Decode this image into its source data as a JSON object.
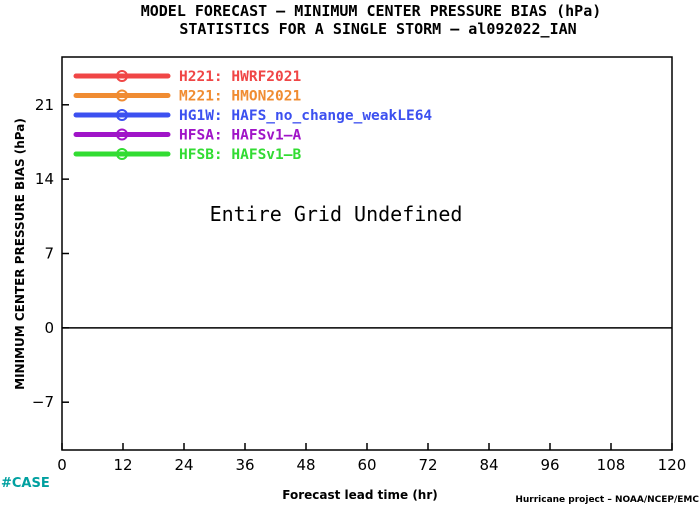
{
  "chart_data": {
    "type": "line",
    "title": "MODEL FORECAST – MINIMUM CENTER PRESSURE BIAS (hPa)",
    "subtitle": "STATISTICS FOR A SINGLE STORM – al092022_IAN",
    "xlabel": "Forecast lead time (hr)",
    "ylabel": "MINIMUM CENTER PRESSURE BIAS (hPa)",
    "xlim": [
      0,
      120
    ],
    "ylim": [
      -11.5,
      25.5
    ],
    "x_ticks": [
      "0",
      "12",
      "24",
      "36",
      "48",
      "60",
      "72",
      "84",
      "96",
      "108",
      "120"
    ],
    "y_ticks": [
      "−7",
      "0",
      "7",
      "14",
      "21"
    ],
    "zero_line": true,
    "grid": false,
    "legend_position": "top-left",
    "series": [
      {
        "name": "H221: HWRF2021",
        "color": "#f04646",
        "values": []
      },
      {
        "name": "M221: HMON2021",
        "color": "#f08c32",
        "values": []
      },
      {
        "name": "HG1W: HAFS_no_change_weakLE64",
        "color": "#3c50f0",
        "values": []
      },
      {
        "name": "HFSA: HAFSv1–A",
        "color": "#a014c8",
        "values": []
      },
      {
        "name": "HFSB: HAFSv1–B",
        "color": "#32dc32",
        "values": []
      }
    ],
    "annotation": "Entire Grid Undefined"
  },
  "footer": {
    "left_tag": "#CASE",
    "left_tag_color": "#00a0a0",
    "credit": "Hurricane project – NOAA/NCEP/EMC"
  }
}
